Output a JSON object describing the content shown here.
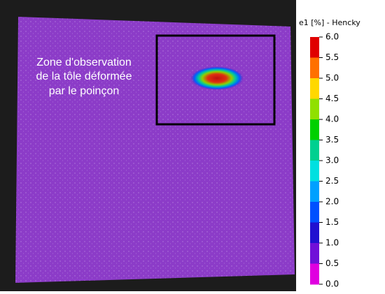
{
  "annotation": [
    "Zone d'observation",
    "de la tôle déformée",
    "par le poinçon"
  ],
  "colorbar": {
    "title": "e1 [%] - Hencky",
    "ticks": [
      "6.0",
      "5.5",
      "5.0",
      "4.5",
      "4.0",
      "3.5",
      "3.0",
      "2.5",
      "2.0",
      "1.5",
      "1.0",
      "0.5",
      "0.0"
    ]
  }
}
